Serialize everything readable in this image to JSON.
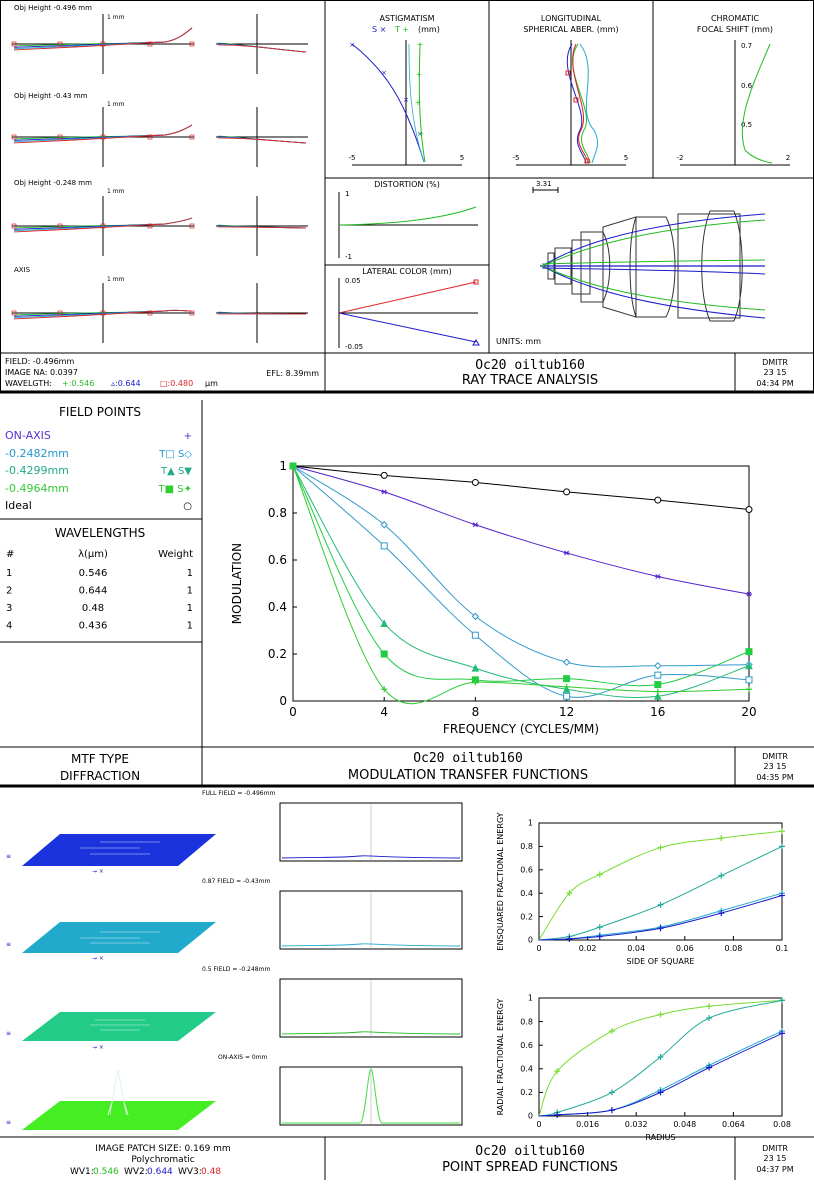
{
  "colors": {
    "green": "#22bb22",
    "blue": "#1a1acc",
    "red": "#dd2222",
    "cyan": "#22aacc",
    "lime": "#44dd44",
    "black": "#000000"
  },
  "ray": {
    "fan_labels": [
      "Obj Height -0.496 mm",
      "Obj Height -0.43 mm",
      "Obj Height -0.248 mm",
      "AXIS"
    ],
    "fan_scale": "1 mm",
    "astig": {
      "title1": "ASTIGMATISM",
      "legend_s": "S ×",
      "legend_t": "T +",
      "legend_unit": "(mm)",
      "xmin": "-5",
      "xmax": "5"
    },
    "long": {
      "title1": "LONGITUDINAL",
      "title2": "SPHERICAL ABER. (mm)",
      "xmin": "-5",
      "xmax": "5"
    },
    "chrom": {
      "title1": "CHROMATIC",
      "title2": "FOCAL SHIFT (mm)",
      "xmin": "-2",
      "xmax": "2",
      "ticks": [
        "0.7",
        "0.6",
        "0.5"
      ]
    },
    "distortion": {
      "title": "DISTORTION (%)",
      "ymax": "1",
      "ymin": "-1"
    },
    "lateral": {
      "title": "LATERAL COLOR (mm)",
      "ymax": "0.05",
      "ymin": "-0.05"
    },
    "layout_scale": "3.31",
    "units": "UNITS: mm",
    "field": "FIELD: -0.496mm",
    "image_na": "IMAGE NA: 0.0397",
    "efl": "EFL: 8.39mm",
    "wavelength_label": "WAVELGTH:",
    "wl1": "+:0.546",
    "wl2": "▵:0.644",
    "wl3": "□:0.480",
    "wl_unit": "μm",
    "title1": "Oc20 oiltub160",
    "title2": "RAY TRACE ANALYSIS",
    "meta": {
      "name": "DMITR",
      "date": "23  15",
      "time": "04:34 PM"
    }
  },
  "mtf": {
    "field_points_title": "FIELD POINTS",
    "points": [
      {
        "label": "ON-AXIS",
        "marks": "+"
      },
      {
        "label": "-0.2482mm",
        "marks": "T□  S◇"
      },
      {
        "label": "-0.4299mm",
        "marks": "T▲  S▼"
      },
      {
        "label": "-0.4964mm",
        "marks": "T■  S✦"
      },
      {
        "label": "Ideal",
        "marks": "○"
      }
    ],
    "wavelengths_title": "WAVELENGTHS",
    "wl_headers": [
      "#",
      "λ(μm)",
      "Weight"
    ],
    "wl_rows": [
      [
        "1",
        "0.546",
        "1"
      ],
      [
        "2",
        "0.644",
        "1"
      ],
      [
        "3",
        "0.48",
        "1"
      ],
      [
        "4",
        "0.436",
        "1"
      ]
    ],
    "type_line1": "MTF TYPE",
    "type_line2": "DIFFRACTION",
    "title1": "Oc20 oiltub160",
    "title2": "MODULATION TRANSFER FUNCTIONS",
    "meta": {
      "name": "DMITR",
      "date": "23  15",
      "time": "04:35 PM"
    }
  },
  "chart_data": [
    {
      "type": "line",
      "xlabel": "FREQUENCY (CYCLES/MM)",
      "ylabel": "MODULATION",
      "xlim": [
        0,
        20
      ],
      "ylim": [
        0,
        1
      ],
      "x_ticks": [
        "0",
        "4",
        "8",
        "12",
        "16",
        "20"
      ],
      "y_ticks": [
        "0",
        "0.2",
        "0.4",
        "0.6",
        "0.8",
        "1"
      ],
      "x": [
        0,
        4,
        8,
        12,
        16,
        20
      ],
      "series": [
        {
          "values": [
            1,
            0.96,
            0.93,
            0.89,
            0.855,
            0.815
          ],
          "color": "#000000",
          "marker": "circle"
        },
        {
          "values": [
            1,
            0.89,
            0.75,
            0.63,
            0.53,
            0.455
          ],
          "color": "#5522cc",
          "marker": "star"
        },
        {
          "values": [
            1,
            0.75,
            0.36,
            0.165,
            0.15,
            0.155
          ],
          "color": "#3399cc",
          "marker": "diamond"
        },
        {
          "values": [
            1,
            0.66,
            0.28,
            0.02,
            0.11,
            0.09
          ],
          "color": "#3399cc",
          "marker": "square"
        },
        {
          "values": [
            1,
            0.33,
            0.14,
            0.05,
            0.02,
            0.15
          ],
          "color": "#22bb77",
          "marker": "triangle"
        },
        {
          "values": [
            1,
            0.2,
            0.09,
            0.095,
            0.07,
            0.21
          ],
          "color": "#22cc44",
          "marker": "square-filled"
        },
        {
          "values": [
            1,
            0.05,
            0.08,
            0.06,
            0.04,
            0.05
          ],
          "color": "#33cc33",
          "marker": "plus"
        }
      ]
    },
    {
      "type": "line",
      "xlabel": "SIDE OF SQUARE",
      "ylabel": "ENSQUARED FRACTIONAL ENERGY",
      "xlim": [
        0,
        0.1
      ],
      "ylim": [
        0,
        1
      ],
      "x_ticks": [
        "0",
        "0.02",
        "0.04",
        "0.06",
        "0.08",
        "0.1"
      ],
      "y_ticks": [
        "0",
        "0.2",
        "0.4",
        "0.6",
        "0.8",
        "1"
      ],
      "x": [
        0,
        0.0125,
        0.025,
        0.05,
        0.075,
        0.1
      ],
      "series": [
        {
          "values": [
            0,
            0.4,
            0.56,
            0.79,
            0.87,
            0.93
          ],
          "color": "#77dd33"
        },
        {
          "values": [
            0,
            0.03,
            0.11,
            0.3,
            0.55,
            0.8
          ],
          "color": "#22aa99"
        },
        {
          "values": [
            0,
            0.01,
            0.04,
            0.11,
            0.25,
            0.4
          ],
          "color": "#22aacc"
        },
        {
          "values": [
            0,
            0.01,
            0.03,
            0.1,
            0.23,
            0.38
          ],
          "color": "#1a1acc"
        }
      ]
    },
    {
      "type": "line",
      "xlabel": "RADIUS",
      "ylabel": "RADIAL FRACTIONAL ENERGY",
      "xlim": [
        0,
        0.08
      ],
      "ylim": [
        0,
        1
      ],
      "x_ticks": [
        "0",
        "0.016",
        "0.032",
        "0.048",
        "0.064",
        "0.08"
      ],
      "y_ticks": [
        "0",
        "0.2",
        "0.4",
        "0.6",
        "0.8",
        "1"
      ],
      "x": [
        0,
        0.006,
        0.024,
        0.04,
        0.056,
        0.08
      ],
      "series": [
        {
          "values": [
            0,
            0.38,
            0.72,
            0.86,
            0.93,
            0.98
          ],
          "color": "#77dd33"
        },
        {
          "values": [
            0,
            0.03,
            0.2,
            0.5,
            0.83,
            0.98
          ],
          "color": "#22aa99"
        },
        {
          "values": [
            0,
            0.01,
            0.05,
            0.22,
            0.43,
            0.72
          ],
          "color": "#22aacc"
        },
        {
          "values": [
            0,
            0.01,
            0.05,
            0.2,
            0.41,
            0.7
          ],
          "color": "#1a1acc"
        }
      ]
    }
  ],
  "psf": {
    "field_labels": [
      "FULL FIELD = -0.496mm",
      "0.87 FIELD = -0.43mm",
      "0.5 FIELD = -0.248mm",
      "ON-AXIS = 0mm"
    ],
    "patch_size": "IMAGE PATCH SIZE: 0.169 mm",
    "mode": "Polychromatic",
    "wv1_label": "WV1:",
    "wv1": "0.546",
    "wv2_label": "WV2:",
    "wv2": "0.644",
    "wv3_label": "WV3:",
    "wv3": "0.48",
    "title1": "Oc20 oiltub160",
    "title2": "POINT SPREAD FUNCTIONS",
    "meta": {
      "name": "DMITR",
      "date": "23  15",
      "time": "04:37 PM"
    }
  }
}
